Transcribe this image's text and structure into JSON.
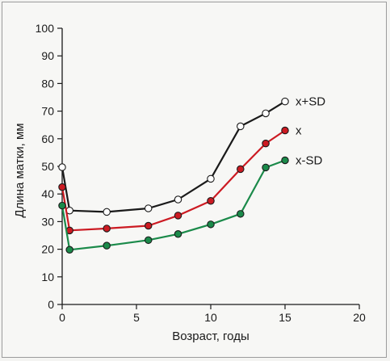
{
  "chart_data": {
    "type": "line",
    "xlabel": "Возраст, годы",
    "ylabel": "Длина матки, мм",
    "xlim": [
      0,
      20
    ],
    "ylim": [
      0,
      100
    ],
    "xticks": [
      0,
      5,
      10,
      15,
      20
    ],
    "yticks": [
      0,
      10,
      20,
      30,
      40,
      50,
      60,
      70,
      80,
      90,
      100
    ],
    "grid": false,
    "legend": "inline labels at series ends",
    "series": [
      {
        "name": "x+SD",
        "color": "#1a1a1a",
        "marker": "open-circle",
        "x": [
          0,
          0.5,
          3,
          5.8,
          7.8,
          10,
          12,
          13.7,
          15
        ],
        "y": [
          49.7,
          34,
          33.5,
          34.8,
          38,
          45.5,
          64.5,
          69.2,
          73.5
        ]
      },
      {
        "name": "x",
        "color": "#cc1a22",
        "marker": "filled-circle",
        "x": [
          0,
          0.5,
          3,
          5.8,
          7.8,
          10,
          12,
          13.7,
          15
        ],
        "y": [
          42.5,
          26.8,
          27.5,
          28.5,
          32.2,
          37.5,
          49,
          58.3,
          63
        ]
      },
      {
        "name": "x-SD",
        "color": "#1b8a4a",
        "marker": "filled-circle",
        "x": [
          0,
          0.5,
          3,
          5.8,
          7.8,
          10,
          12,
          13.7,
          15
        ],
        "y": [
          35.8,
          19.8,
          21.3,
          23.3,
          25.5,
          29,
          32.8,
          49.6,
          52.2
        ]
      }
    ]
  }
}
